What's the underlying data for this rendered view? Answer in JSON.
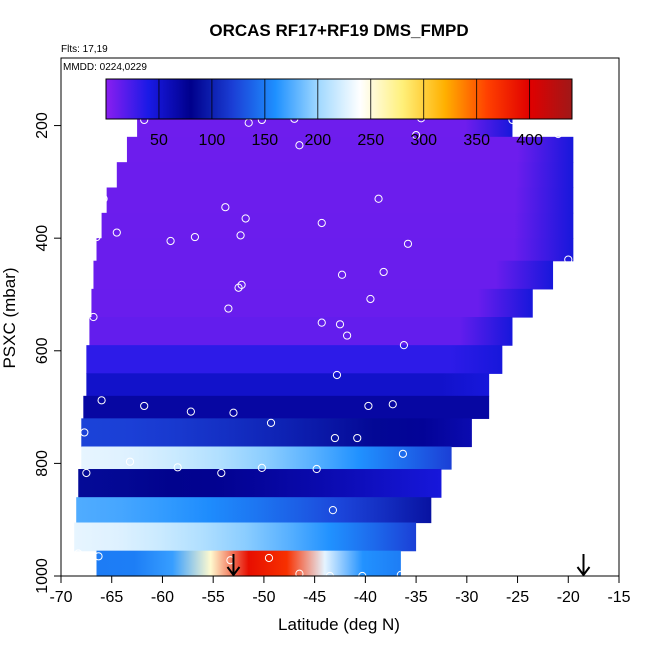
{
  "chart_data": {
    "type": "heatmap",
    "title": "ORCAS RF17+RF19 DMS_FMPD",
    "annotations": [
      "Flts: 17,19",
      "MMDD: 0224,0229"
    ],
    "xlabel": "Latitude (deg N)",
    "ylabel": "PSXC (mbar)",
    "xlim": [
      -70,
      -15
    ],
    "ylim": [
      1000,
      80
    ],
    "x_ticks": [
      -70,
      -65,
      -60,
      -55,
      -50,
      -45,
      -40,
      -35,
      -30,
      -25,
      -20,
      -15
    ],
    "y_ticks": [
      200,
      400,
      600,
      800,
      1000
    ],
    "colorbar": {
      "range": [
        0,
        440
      ],
      "ticks": [
        50,
        100,
        150,
        200,
        250,
        300,
        350,
        400
      ],
      "palette": [
        "#8a1ef0",
        "#1a1ae6",
        "#00008b",
        "#1b3fd6",
        "#1e90ff",
        "#9fd8ff",
        "#ffffff",
        "#fff07a",
        "#ffb000",
        "#ff4000",
        "#e00000",
        "#a01818"
      ]
    },
    "grid": false,
    "legend": "top colorbar",
    "layers": [
      {
        "p_top": 170,
        "p_bot": 220,
        "x_left": -62.5,
        "x_right": -25.5
      },
      {
        "p_top": 220,
        "p_bot": 265,
        "x_left": -63.5,
        "x_right": -19.5
      },
      {
        "p_top": 265,
        "p_bot": 310,
        "x_left": -64.5,
        "x_right": -19.5
      },
      {
        "p_top": 310,
        "p_bot": 355,
        "x_left": -65.5,
        "x_right": -19.5
      },
      {
        "p_top": 355,
        "p_bot": 400,
        "x_left": -66,
        "x_right": -19.5
      },
      {
        "p_top": 400,
        "p_bot": 440,
        "x_left": -66.5,
        "x_right": -19.5
      },
      {
        "p_top": 440,
        "p_bot": 490,
        "x_left": -66.8,
        "x_right": -21.5
      },
      {
        "p_top": 490,
        "p_bot": 540,
        "x_left": -67,
        "x_right": -23.5
      },
      {
        "p_top": 540,
        "p_bot": 590,
        "x_left": -67.2,
        "x_right": -25.5
      },
      {
        "p_top": 590,
        "p_bot": 640,
        "x_left": -67.5,
        "x_right": -26.5
      },
      {
        "p_top": 640,
        "p_bot": 680,
        "x_left": -67.5,
        "x_right": -27.8
      },
      {
        "p_top": 680,
        "p_bot": 720,
        "x_left": -67.8,
        "x_right": -27.8
      },
      {
        "p_top": 720,
        "p_bot": 770,
        "x_left": -68,
        "x_right": -29.5
      },
      {
        "p_top": 770,
        "p_bot": 810,
        "x_left": -68,
        "x_right": -31.5
      },
      {
        "p_top": 810,
        "p_bot": 860,
        "x_left": -68.3,
        "x_right": -32.5
      },
      {
        "p_top": 860,
        "p_bot": 905,
        "x_left": -68.5,
        "x_right": -33.5
      },
      {
        "p_top": 905,
        "p_bot": 955,
        "x_left": -68.7,
        "x_right": -35
      },
      {
        "p_top": 955,
        "p_bot": 1000,
        "x_left": -66.5,
        "x_right": -36.5
      }
    ],
    "profile_value_stops": [
      {
        "p": 180,
        "v": 10
      },
      {
        "p": 560,
        "v": 12
      },
      {
        "p": 620,
        "v": 35
      },
      {
        "p": 700,
        "v": 70
      },
      {
        "p": 750,
        "v": 110
      },
      {
        "p": 790,
        "v": 200
      },
      {
        "p": 820,
        "v": 180
      },
      {
        "p": 840,
        "v": 40
      },
      {
        "p": 880,
        "v": 150
      },
      {
        "p": 930,
        "v": 200
      },
      {
        "p": 960,
        "v": 260
      },
      {
        "p": 990,
        "v": 330
      }
    ],
    "sample_points": [
      {
        "lat": -60.2,
        "p": 178
      },
      {
        "lat": -61.8,
        "p": 190
      },
      {
        "lat": -51.5,
        "p": 195
      },
      {
        "lat": -50.2,
        "p": 190
      },
      {
        "lat": -47,
        "p": 188
      },
      {
        "lat": -46.5,
        "p": 235
      },
      {
        "lat": -34.5,
        "p": 187
      },
      {
        "lat": -35,
        "p": 217
      },
      {
        "lat": -25.5,
        "p": 190
      },
      {
        "lat": -21,
        "p": 215
      },
      {
        "lat": -65.8,
        "p": 330
      },
      {
        "lat": -53.8,
        "p": 345
      },
      {
        "lat": -51.8,
        "p": 365
      },
      {
        "lat": -38.7,
        "p": 330
      },
      {
        "lat": -64.5,
        "p": 390
      },
      {
        "lat": -66.5,
        "p": 398
      },
      {
        "lat": -59.2,
        "p": 405
      },
      {
        "lat": -56.8,
        "p": 398
      },
      {
        "lat": -52.3,
        "p": 395
      },
      {
        "lat": -44.3,
        "p": 373
      },
      {
        "lat": -35.8,
        "p": 410
      },
      {
        "lat": -20,
        "p": 438
      },
      {
        "lat": -42.3,
        "p": 465
      },
      {
        "lat": -38.2,
        "p": 460
      },
      {
        "lat": -52.2,
        "p": 483
      },
      {
        "lat": -52.5,
        "p": 488
      },
      {
        "lat": -39.5,
        "p": 508
      },
      {
        "lat": -53.5,
        "p": 525
      },
      {
        "lat": -44.3,
        "p": 550
      },
      {
        "lat": -42.5,
        "p": 553
      },
      {
        "lat": -41.8,
        "p": 573
      },
      {
        "lat": -66.8,
        "p": 540
      },
      {
        "lat": -36.2,
        "p": 590
      },
      {
        "lat": -42.8,
        "p": 643
      },
      {
        "lat": -66,
        "p": 688
      },
      {
        "lat": -61.8,
        "p": 698
      },
      {
        "lat": -57.2,
        "p": 708
      },
      {
        "lat": -53,
        "p": 710
      },
      {
        "lat": -39.7,
        "p": 698
      },
      {
        "lat": -37.3,
        "p": 695
      },
      {
        "lat": -49.3,
        "p": 728
      },
      {
        "lat": -67.7,
        "p": 745
      },
      {
        "lat": -43,
        "p": 755
      },
      {
        "lat": -40.8,
        "p": 755
      },
      {
        "lat": -36.3,
        "p": 783
      },
      {
        "lat": -63.2,
        "p": 797
      },
      {
        "lat": -58.5,
        "p": 807
      },
      {
        "lat": -54.2,
        "p": 817
      },
      {
        "lat": -50.2,
        "p": 808
      },
      {
        "lat": -44.8,
        "p": 810
      },
      {
        "lat": -67.5,
        "p": 817
      },
      {
        "lat": -43.2,
        "p": 883
      },
      {
        "lat": -68.3,
        "p": 960
      },
      {
        "lat": -66.3,
        "p": 965
      },
      {
        "lat": -49.5,
        "p": 968
      },
      {
        "lat": -53.3,
        "p": 972
      },
      {
        "lat": -46.5,
        "p": 996
      },
      {
        "lat": -43.5,
        "p": 1000
      },
      {
        "lat": -40.3,
        "p": 1000
      },
      {
        "lat": -36.5,
        "p": 998
      }
    ],
    "markers": [
      {
        "type": "arrow",
        "lat": -53,
        "p": 1000
      },
      {
        "type": "arrow",
        "lat": -18.5,
        "p": 1000
      }
    ]
  }
}
